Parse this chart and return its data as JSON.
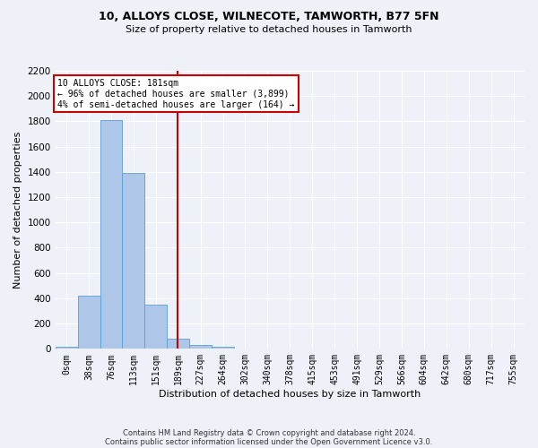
{
  "title1": "10, ALLOYS CLOSE, WILNECOTE, TAMWORTH, B77 5FN",
  "title2": "Size of property relative to detached houses in Tamworth",
  "xlabel": "Distribution of detached houses by size in Tamworth",
  "ylabel": "Number of detached properties",
  "footnote1": "Contains HM Land Registry data © Crown copyright and database right 2024.",
  "footnote2": "Contains public sector information licensed under the Open Government Licence v3.0.",
  "bar_labels": [
    "0sqm",
    "38sqm",
    "76sqm",
    "113sqm",
    "151sqm",
    "189sqm",
    "227sqm",
    "264sqm",
    "302sqm",
    "340sqm",
    "378sqm",
    "415sqm",
    "453sqm",
    "491sqm",
    "529sqm",
    "566sqm",
    "604sqm",
    "642sqm",
    "680sqm",
    "717sqm",
    "755sqm"
  ],
  "bar_values": [
    15,
    420,
    1810,
    1390,
    350,
    80,
    30,
    20,
    0,
    0,
    0,
    0,
    0,
    0,
    0,
    0,
    0,
    0,
    0,
    0,
    0
  ],
  "bar_color": "#aec6e8",
  "bar_edgecolor": "#5a9fd4",
  "ylim": [
    0,
    2200
  ],
  "yticks": [
    0,
    200,
    400,
    600,
    800,
    1000,
    1200,
    1400,
    1600,
    1800,
    2000,
    2200
  ],
  "property_line_x": 4.97,
  "annotation_title": "10 ALLOYS CLOSE: 181sqm",
  "annotation_line1": "← 96% of detached houses are smaller (3,899)",
  "annotation_line2": "4% of semi-detached houses are larger (164) →",
  "vline_color": "#cc0000",
  "annotation_box_color": "#ffffff",
  "annotation_box_edgecolor": "#cc0000",
  "fig_bg_color": "#eef2f8",
  "ax_bg_color": "#eef2f8",
  "grid_color": "#ffffff"
}
